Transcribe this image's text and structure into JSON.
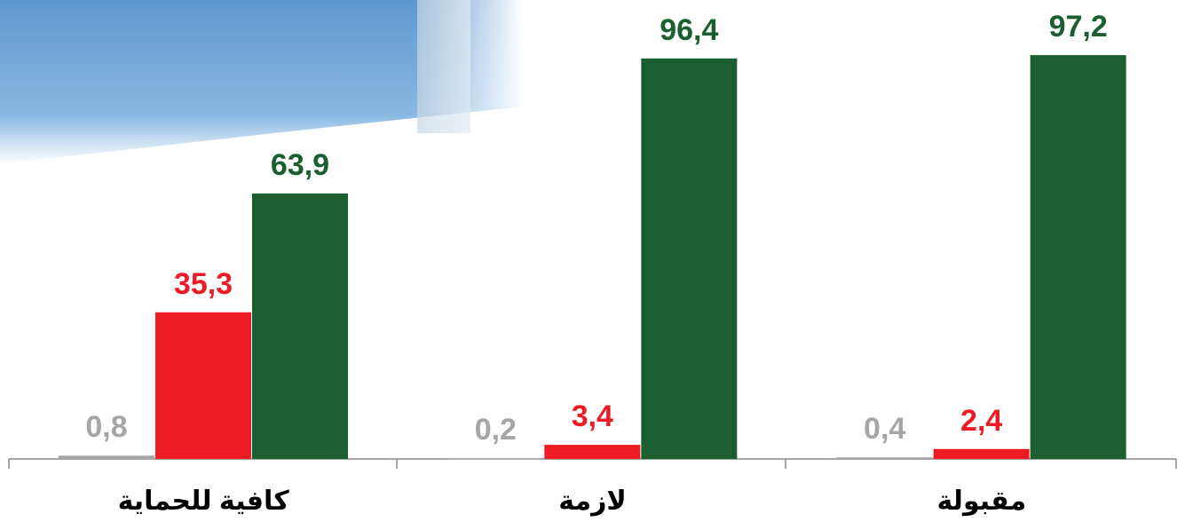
{
  "chart_data": {
    "type": "bar",
    "categories": [
      "كافية للحماية",
      "لازمة",
      "مقبولة"
    ],
    "series": [
      {
        "color": "#a6a6a6",
        "values": [
          0.8,
          0.2,
          0.4
        ],
        "value_labels": [
          "0,8",
          "0,2",
          "0,4"
        ]
      },
      {
        "color": "#ed1c24",
        "values": [
          35.3,
          3.4,
          2.4
        ],
        "value_labels": [
          "35,3",
          "3,4",
          "2,4"
        ]
      },
      {
        "color": "#1b5e30",
        "values": [
          63.9,
          96.4,
          97.2
        ],
        "value_labels": [
          "63,9",
          "96,4",
          "97,2"
        ]
      }
    ],
    "ylim": [
      0,
      100
    ]
  }
}
